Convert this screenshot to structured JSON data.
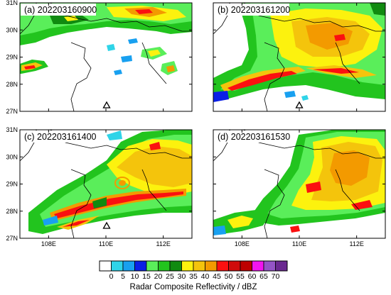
{
  "figure": {
    "panels": [
      {
        "id": "a",
        "label": "(a) 202203160900",
        "marker": true,
        "show_y_ticks": true,
        "show_x_ticks": false
      },
      {
        "id": "b",
        "label": "(b) 202203161200",
        "marker": true,
        "show_y_ticks": false,
        "show_x_ticks": false
      },
      {
        "id": "c",
        "label": "(c) 202203161400",
        "marker": true,
        "show_y_ticks": true,
        "show_x_ticks": true
      },
      {
        "id": "d",
        "label": "(d) 202203161530",
        "marker": false,
        "show_y_ticks": false,
        "show_x_ticks": true
      }
    ],
    "axes": {
      "x_ticks": [
        "108E",
        "110E",
        "112E"
      ],
      "y_ticks": [
        "31N",
        "30N",
        "29N",
        "28N",
        "27N"
      ]
    },
    "colorbar": {
      "title": "Radar Composite Reflectivity / dBZ",
      "ticks": [
        "0",
        "5",
        "10",
        "15",
        "20",
        "25",
        "30",
        "35",
        "40",
        "45",
        "50",
        "55",
        "60",
        "65",
        "70"
      ],
      "colors": [
        "#ffffff",
        "#2fd4e8",
        "#18a0f0",
        "#0a1fe6",
        "#5aee5a",
        "#22c41e",
        "#108a10",
        "#fcf20e",
        "#f4c40c",
        "#f39a00",
        "#fb1010",
        "#d00c0c",
        "#bd0000",
        "#f314f0",
        "#9454c6",
        "#6a2890"
      ]
    }
  }
}
